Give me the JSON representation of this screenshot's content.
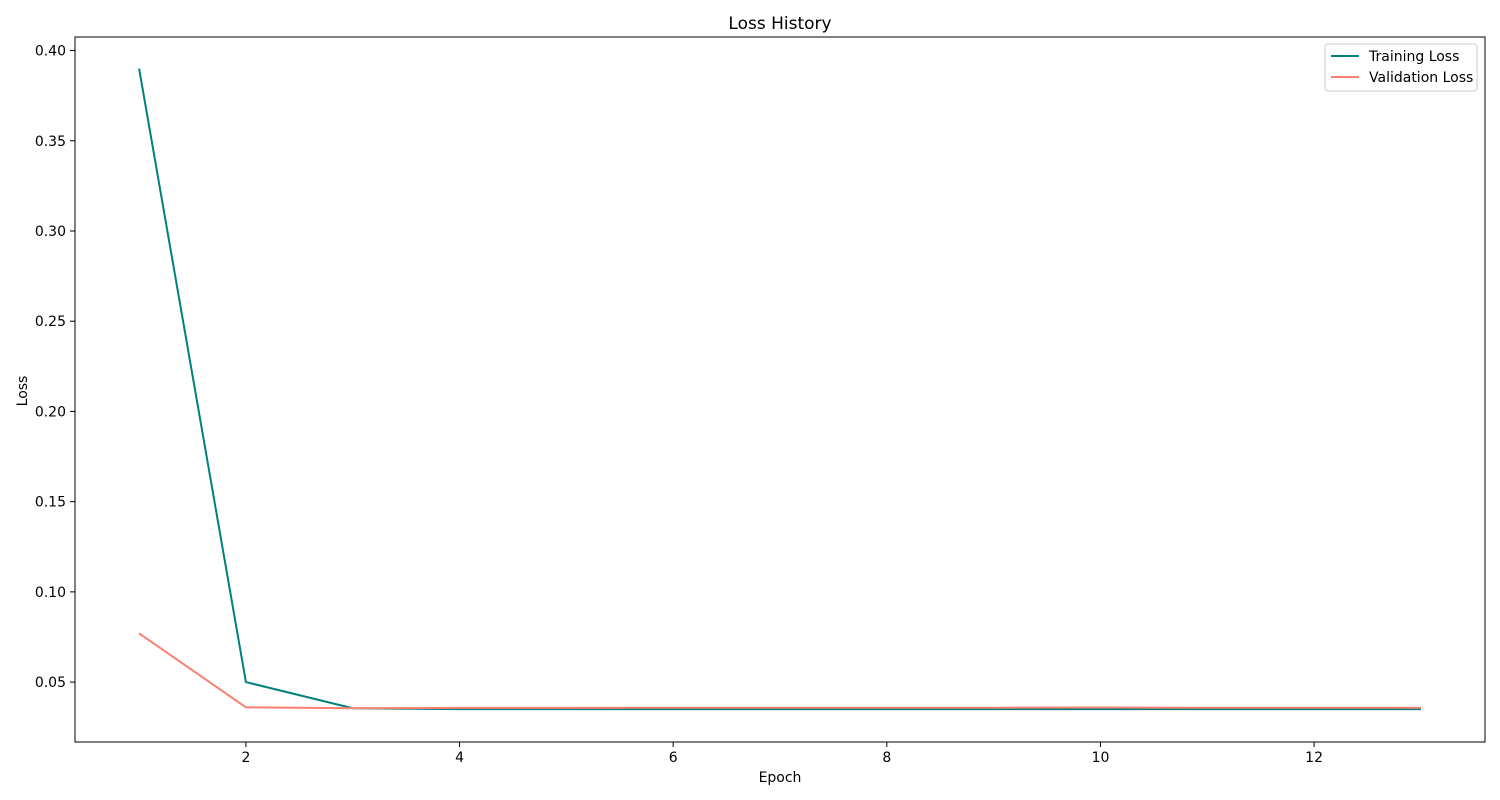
{
  "chart_data": {
    "type": "line",
    "title": "Loss History",
    "xlabel": "Epoch",
    "ylabel": "Loss",
    "xlim": [
      0.4,
      13.6
    ],
    "ylim": [
      0.0168,
      0.4075
    ],
    "xticks": [
      2,
      4,
      6,
      8,
      10,
      12
    ],
    "xtick_labels": [
      "2",
      "4",
      "6",
      "8",
      "10",
      "12"
    ],
    "yticks": [
      0.05,
      0.1,
      0.15,
      0.2,
      0.25,
      0.3,
      0.35,
      0.4
    ],
    "ytick_labels": [
      "0.05",
      "0.10",
      "0.15",
      "0.20",
      "0.25",
      "0.30",
      "0.35",
      "0.40"
    ],
    "grid": false,
    "legend_position": "top-right",
    "x": [
      1,
      2,
      3,
      4,
      5,
      6,
      7,
      8,
      9,
      10,
      11,
      12,
      13
    ],
    "series": [
      {
        "name": "Training Loss",
        "color": "#008080",
        "values": [
          0.39,
          0.05,
          0.0355,
          0.035,
          0.035,
          0.035,
          0.035,
          0.035,
          0.035,
          0.035,
          0.035,
          0.035,
          0.035
        ]
      },
      {
        "name": "Validation Loss",
        "color": "#FA8072",
        "values": [
          0.077,
          0.036,
          0.0355,
          0.0357,
          0.0357,
          0.0358,
          0.0358,
          0.0358,
          0.0358,
          0.0359,
          0.0358,
          0.0358,
          0.0358
        ]
      }
    ]
  }
}
